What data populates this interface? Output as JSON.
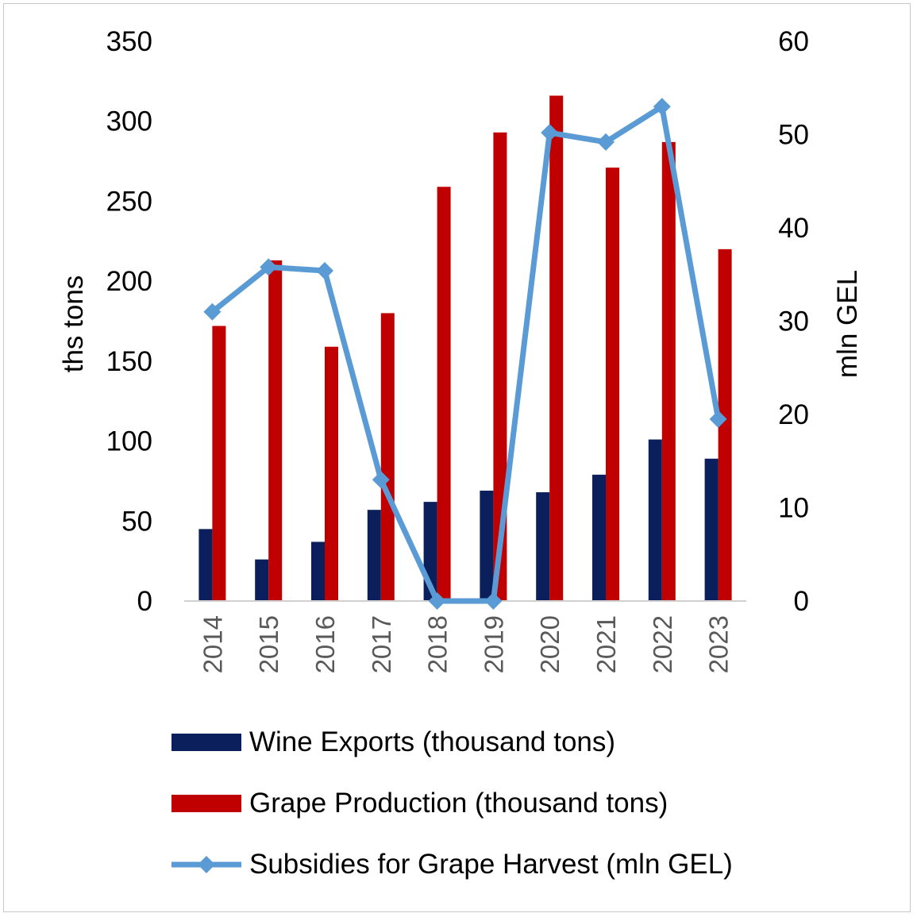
{
  "chart_data": {
    "type": "bar+line",
    "categories": [
      "2014",
      "2015",
      "2016",
      "2017",
      "2018",
      "2019",
      "2020",
      "2021",
      "2022",
      "2023"
    ],
    "series": [
      {
        "name": "Wine Exports (thousand tons)",
        "type": "bar",
        "axis": "left",
        "color": "#0a1f5c",
        "values": [
          45,
          26,
          37,
          57,
          62,
          69,
          68,
          79,
          101,
          89
        ]
      },
      {
        "name": "Grape Production (thousand tons)",
        "type": "bar",
        "axis": "left",
        "color": "#c00000",
        "values": [
          172,
          213,
          159,
          180,
          259,
          293,
          316,
          271,
          287,
          220
        ]
      },
      {
        "name": "Subsidies for Grape Harvest (mln GEL)",
        "type": "line",
        "axis": "right",
        "marker": "diamond",
        "color": "#5b9bd5",
        "values": [
          31,
          35.8,
          35.4,
          13,
          0,
          0,
          50.2,
          49.2,
          53,
          19.5
        ]
      }
    ],
    "left_axis": {
      "label": "ths tons",
      "ylim": [
        0,
        350
      ],
      "ticks": [
        "0",
        "50",
        "100",
        "150",
        "200",
        "250",
        "300",
        "350"
      ]
    },
    "right_axis": {
      "label": "mln GEL",
      "ylim": [
        0,
        60
      ],
      "ticks": [
        "0",
        "10",
        "20",
        "30",
        "40",
        "50",
        "60"
      ]
    },
    "grid": false,
    "legend_position": "bottom"
  },
  "legend": {
    "items": [
      "Wine Exports (thousand tons)",
      "Grape Production (thousand tons)",
      "Subsidies for Grape Harvest (mln GEL)"
    ]
  },
  "colors": {
    "wine": "#0a1f5c",
    "grape": "#c00000",
    "subsidy": "#5b9bd5"
  }
}
